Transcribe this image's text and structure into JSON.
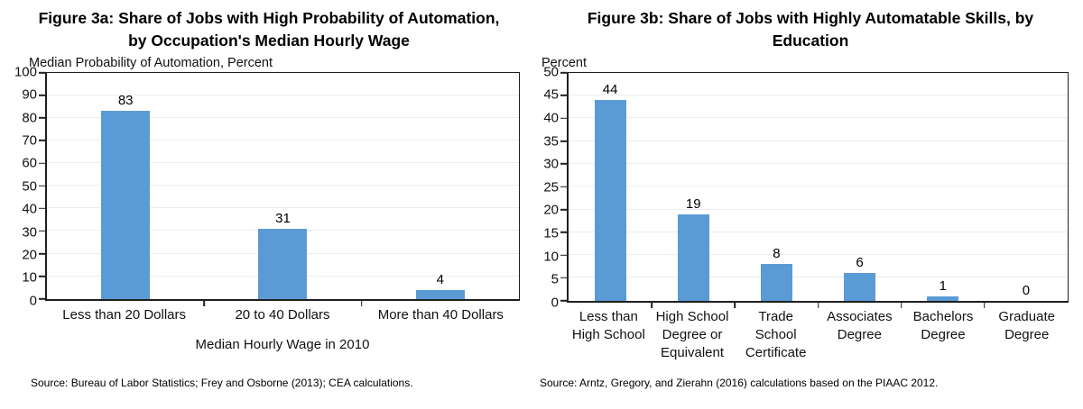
{
  "chart_data": [
    {
      "type": "bar",
      "title": "Figure 3a: Share of Jobs with High Probability of Automation,\nby Occupation's Median Hourly Wage",
      "ylabel": "Median Probability of Automation, Percent",
      "xlabel": "Median Hourly Wage in 2010",
      "source": "Source: Bureau of Labor Statistics; Frey and Osborne (2013); CEA calculations.",
      "categories": [
        "Less than 20 Dollars",
        "20 to 40 Dollars",
        "More than 40 Dollars"
      ],
      "values": [
        83,
        31,
        4
      ],
      "ylim": [
        0,
        100
      ],
      "yticks": [
        0,
        10,
        20,
        30,
        40,
        50,
        60,
        70,
        80,
        90,
        100
      ],
      "grid": true,
      "legend": false,
      "bar_color": "#5B9BD5"
    },
    {
      "type": "bar",
      "title": "Figure 3b: Share of Jobs with Highly Automatable Skills, by\nEducation",
      "ylabel": "Percent",
      "xlabel": "",
      "source": "Source: Arntz, Gregory, and Zierahn (2016) calculations based on the PIAAC 2012.",
      "categories": [
        "Less than\nHigh School",
        "High School\nDegree or\nEquivalent",
        "Trade\nSchool\nCertificate",
        "Associates\nDegree",
        "Bachelors\nDegree",
        "Graduate\nDegree"
      ],
      "values": [
        44,
        19,
        8,
        6,
        1,
        0
      ],
      "ylim": [
        0,
        50
      ],
      "yticks": [
        0,
        5,
        10,
        15,
        20,
        25,
        30,
        35,
        40,
        45,
        50
      ],
      "grid": true,
      "legend": false,
      "bar_color": "#5B9BD5"
    }
  ]
}
